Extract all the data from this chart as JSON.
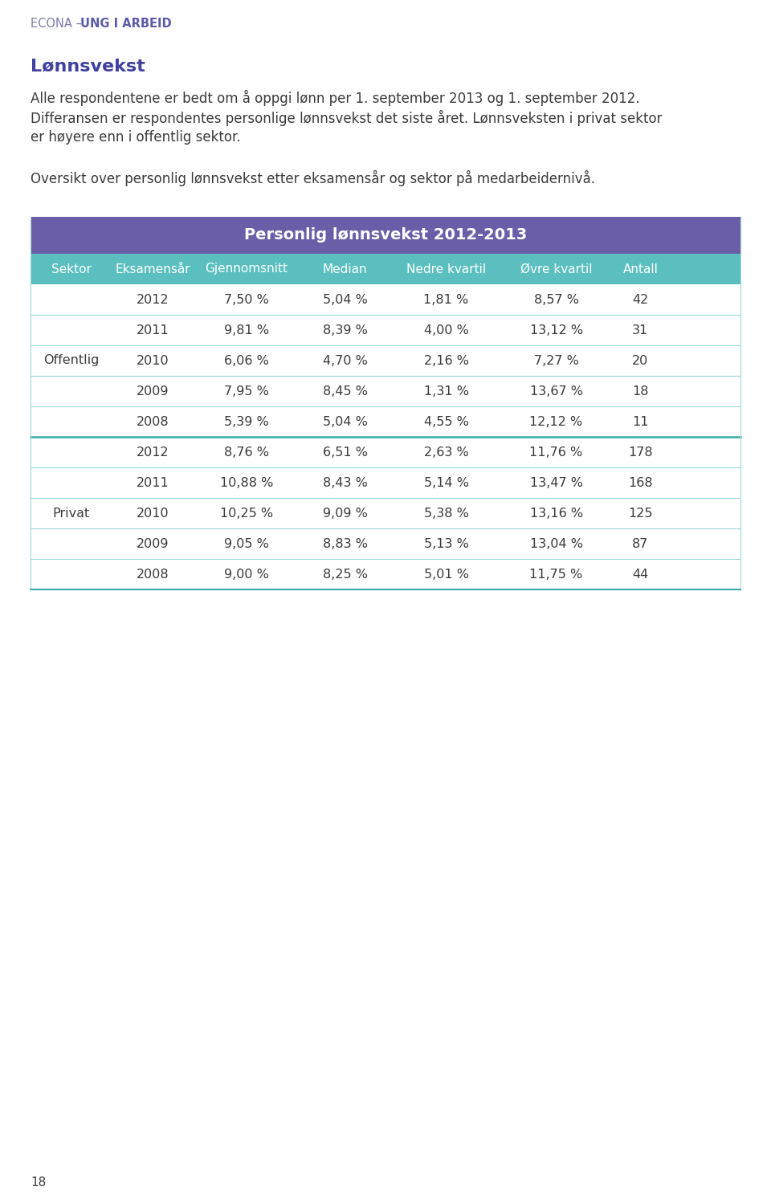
{
  "page_title_normal": "ECONA – ",
  "page_title_bold": "UNG I ARBEID",
  "section_title": "Lønnsvekst",
  "body_text_1": "Alle respondentene er bedt om å oppgi lønn per 1. september 2013 og 1. september 2012.",
  "body_text_2": "Differansen er respondentes personlige lønnsvekst det siste året. Lønnsveksten i privat sektor",
  "body_text_3": "er høyere enn i offentlig sektor.",
  "body_text_4": "Oversikt over personlig lønnsvekst etter eksamensår og sektor på medarbeidernivå.",
  "table_title": "Personlig lønnsvekst 2012-2013",
  "col_headers": [
    "Sektor",
    "Eksamensår",
    "Gjennomsnitt",
    "Median",
    "Nedre kvartil",
    "Øvre kvartil",
    "Antall"
  ],
  "rows": [
    [
      "",
      "2012",
      "7,50 %",
      "5,04 %",
      "1,81 %",
      "8,57 %",
      "42"
    ],
    [
      "",
      "2011",
      "9,81 %",
      "8,39 %",
      "4,00 %",
      "13,12 %",
      "31"
    ],
    [
      "Offentlig",
      "2010",
      "6,06 %",
      "4,70 %",
      "2,16 %",
      "7,27 %",
      "20"
    ],
    [
      "",
      "2009",
      "7,95 %",
      "8,45 %",
      "1,31 %",
      "13,67 %",
      "18"
    ],
    [
      "",
      "2008",
      "5,39 %",
      "5,04 %",
      "4,55 %",
      "12,12 %",
      "11"
    ],
    [
      "",
      "2012",
      "8,76 %",
      "6,51 %",
      "2,63 %",
      "11,76 %",
      "178"
    ],
    [
      "",
      "2011",
      "10,88 %",
      "8,43 %",
      "5,14 %",
      "13,47 %",
      "168"
    ],
    [
      "Privat",
      "2010",
      "10,25 %",
      "9,09 %",
      "5,38 %",
      "13,16 %",
      "125"
    ],
    [
      "",
      "2009",
      "9,05 %",
      "8,83 %",
      "5,13 %",
      "13,04 %",
      "87"
    ],
    [
      "",
      "2008",
      "9,00 %",
      "8,25 %",
      "5,01 %",
      "11,75 %",
      "44"
    ]
  ],
  "offentlig_rows": [
    0,
    1,
    2,
    3,
    4
  ],
  "privat_rows": [
    5,
    6,
    7,
    8,
    9
  ],
  "color_title_bg": "#6B5EA8",
  "color_header_bg": "#5BBFBF",
  "color_header_text": "#ffffff",
  "color_row_border": "#9DD8D8",
  "color_section_border": "#3AACAC",
  "color_table_text": "#3a3a3a",
  "color_page_header_normal": "#7B7BAA",
  "color_page_header_bold": "#5A5AA8",
  "color_section_title": "#4040A0",
  "color_body_text": "#3a3a3a",
  "page_number": "18",
  "background_color": "#ffffff"
}
